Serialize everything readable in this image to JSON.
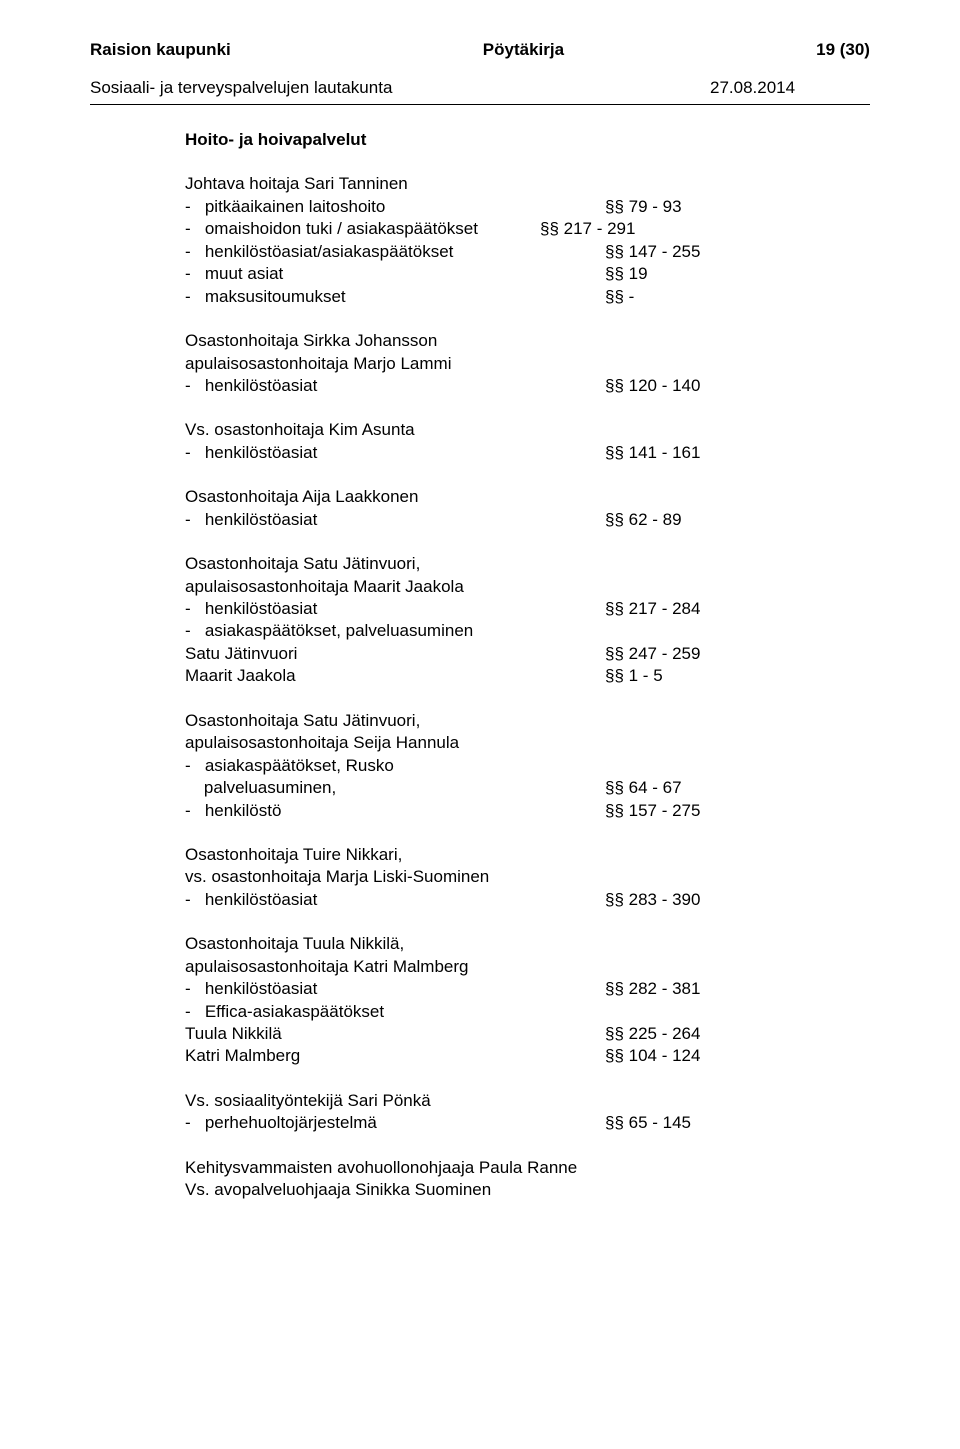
{
  "header": {
    "org": "Raision kaupunki",
    "docType": "Pöytäkirja",
    "pageNum": "19 (30)"
  },
  "subheader": {
    "committee": "Sosiaali- ja terveyspalvelujen lautakunta",
    "date": "27.08.2014"
  },
  "sectionTitle": "Hoito- ja hoivapalvelut",
  "blocks": [
    {
      "lines": [
        {
          "text": "Johtava hoitaja Sari Tanninen",
          "dash": false,
          "value": ""
        },
        {
          "text": "pitkäaikainen laitoshoito",
          "dash": true,
          "value": "§§ 79 - 93"
        },
        {
          "text": "omaishoidon tuki / asiakaspäätökset",
          "dash": true,
          "value": "§§ 217 - 291",
          "tight": true
        },
        {
          "text": "henkilöstöasiat/asiakaspäätökset",
          "dash": true,
          "value": "§§ 147 - 255"
        },
        {
          "text": "muut asiat",
          "dash": true,
          "value": "§§ 19"
        },
        {
          "text": "maksusitoumukset",
          "dash": true,
          "value": "§§ -"
        }
      ]
    },
    {
      "lines": [
        {
          "text": "Osastonhoitaja Sirkka Johansson",
          "dash": false,
          "value": ""
        },
        {
          "text": "apulaisosastonhoitaja Marjo Lammi",
          "dash": false,
          "value": ""
        },
        {
          "text": "henkilöstöasiat",
          "dash": true,
          "value": "§§ 120 - 140"
        }
      ]
    },
    {
      "lines": [
        {
          "text": "Vs. osastonhoitaja Kim Asunta",
          "dash": false,
          "value": ""
        },
        {
          "text": "henkilöstöasiat",
          "dash": true,
          "value": "§§ 141 - 161"
        }
      ]
    },
    {
      "lines": [
        {
          "text": "Osastonhoitaja Aija Laakkonen",
          "dash": false,
          "value": ""
        },
        {
          "text": "henkilöstöasiat",
          "dash": true,
          "value": "§§ 62 - 89"
        }
      ]
    },
    {
      "lines": [
        {
          "text": "Osastonhoitaja Satu Jätinvuori,",
          "dash": false,
          "value": ""
        },
        {
          "text": "apulaisosastonhoitaja Maarit Jaakola",
          "dash": false,
          "value": ""
        },
        {
          "text": "henkilöstöasiat",
          "dash": true,
          "value": "§§ 217 - 284"
        },
        {
          "text": "asiakaspäätökset, palveluasuminen",
          "dash": true,
          "value": ""
        },
        {
          "text": "Satu Jätinvuori",
          "dash": false,
          "value": "§§ 247 - 259"
        },
        {
          "text": "Maarit Jaakola",
          "dash": false,
          "value": "§§ 1 - 5"
        }
      ]
    },
    {
      "lines": [
        {
          "text": "Osastonhoitaja Satu Jätinvuori,",
          "dash": false,
          "value": ""
        },
        {
          "text": "apulaisosastonhoitaja Seija Hannula",
          "dash": false,
          "value": ""
        },
        {
          "text": "asiakaspäätökset, Rusko",
          "dash": true,
          "value": ""
        },
        {
          "text": "palveluasuminen,",
          "dash": false,
          "indent": true,
          "value": "§§ 64 - 67"
        },
        {
          "text": "henkilöstö",
          "dash": true,
          "value": "§§ 157 - 275"
        }
      ]
    },
    {
      "lines": [
        {
          "text": "Osastonhoitaja Tuire Nikkari,",
          "dash": false,
          "value": ""
        },
        {
          "text": "vs. osastonhoitaja Marja Liski-Suominen",
          "dash": false,
          "value": ""
        },
        {
          "text": "henkilöstöasiat",
          "dash": true,
          "value": "§§ 283 - 390"
        }
      ]
    },
    {
      "lines": [
        {
          "text": "Osastonhoitaja Tuula Nikkilä,",
          "dash": false,
          "value": ""
        },
        {
          "text": "apulaisosastonhoitaja Katri Malmberg",
          "dash": false,
          "value": ""
        },
        {
          "text": "henkilöstöasiat",
          "dash": true,
          "value": "§§ 282 - 381"
        },
        {
          "text": "Effica-asiakaspäätökset",
          "dash": true,
          "value": ""
        },
        {
          "text": "Tuula Nikkilä",
          "dash": false,
          "value": "§§ 225 - 264"
        },
        {
          "text": "Katri Malmberg",
          "dash": false,
          "value": "§§ 104 - 124"
        }
      ]
    },
    {
      "lines": [
        {
          "text": "Vs. sosiaalityöntekijä Sari Pönkä",
          "dash": false,
          "value": ""
        },
        {
          "text": "perhehuoltojärjestelmä",
          "dash": true,
          "value": "§§ 65 - 145"
        }
      ]
    },
    {
      "lines": [
        {
          "text": "Kehitysvammaisten avohuollonohjaaja Paula Ranne",
          "dash": false,
          "value": ""
        },
        {
          "text": "Vs. avopalveluohjaaja Sinikka Suominen",
          "dash": false,
          "value": ""
        }
      ]
    }
  ]
}
